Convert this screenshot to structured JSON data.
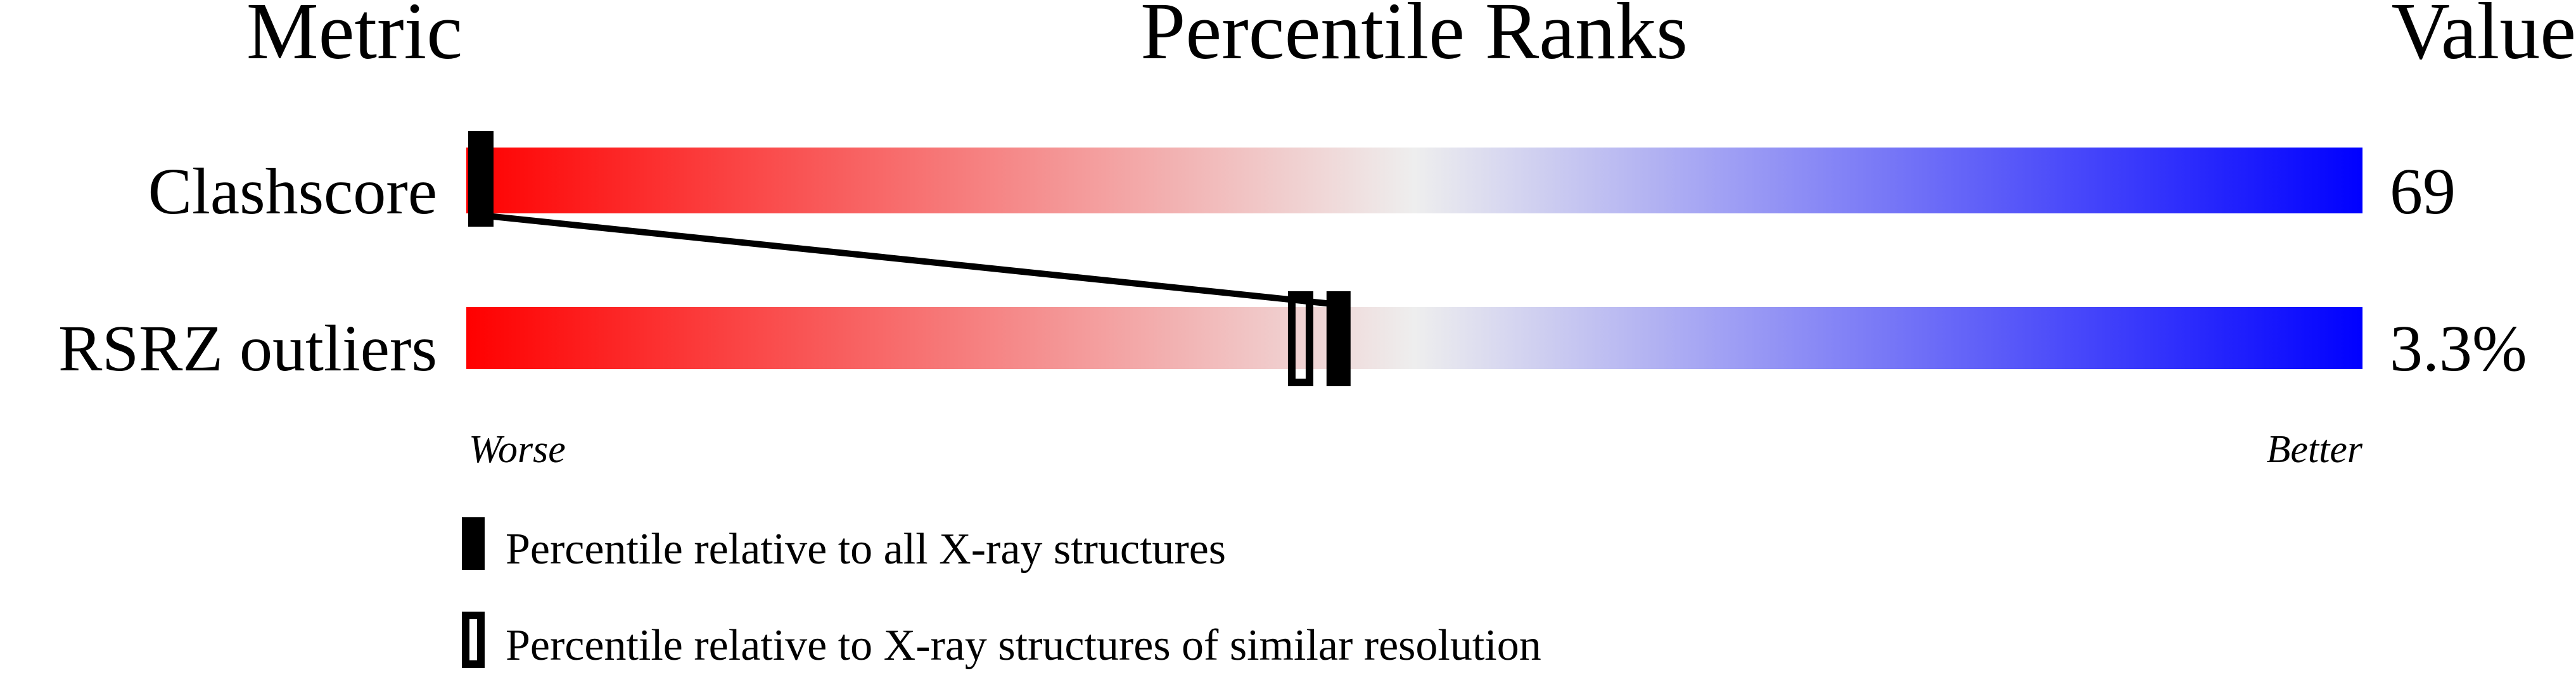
{
  "chart_data": {
    "type": "bar",
    "headers": {
      "metric": "Metric",
      "ranks": "Percentile Ranks",
      "value": "Value"
    },
    "categories": [
      "Clashscore",
      "RSRZ outliers"
    ],
    "values": [
      "69",
      "3.3%"
    ],
    "series": [
      {
        "name": "Percentile relative to all X-ray structures",
        "marker": "filled",
        "values": [
          0,
          46
        ]
      },
      {
        "name": "Percentile relative to X-ray structures of similar resolution",
        "marker": "open",
        "values": [
          0,
          44
        ]
      }
    ],
    "xlim": [
      0,
      100
    ],
    "axis_labels": {
      "left": "Worse",
      "right": "Better"
    },
    "gradient_colors": {
      "worse": "#ff0000",
      "middle": "#eeeeee",
      "better": "#0000ff"
    },
    "legend_placement": "bottom"
  }
}
